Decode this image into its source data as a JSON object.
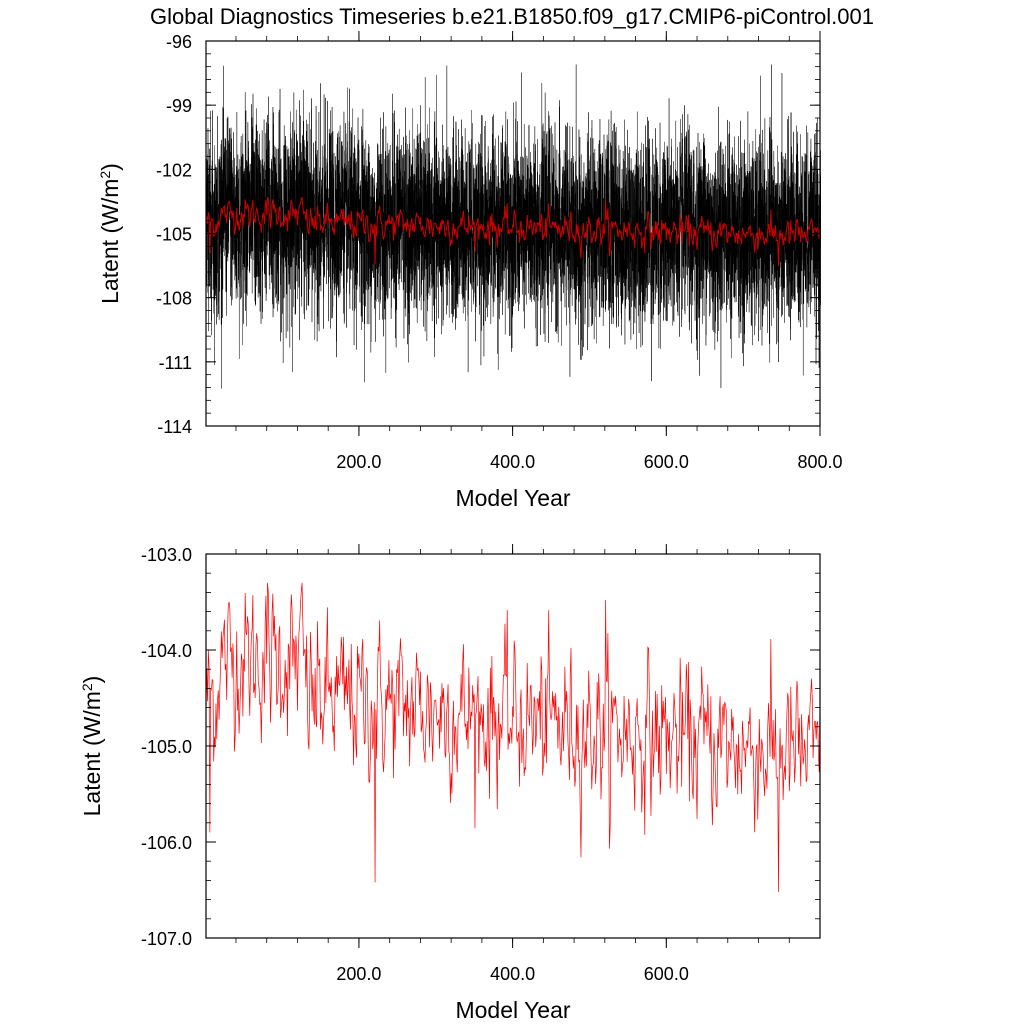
{
  "title": "Global Diagnostics Timeseries b.e21.B1850.f09_g17.CMIP6-piControl.001",
  "chart_data": [
    {
      "type": "line",
      "xlabel": "Model Year",
      "ylabel_main": "Latent (W/m",
      "ylabel_sup": "2",
      "ylabel_tail": ")",
      "xlim": [
        1,
        800
      ],
      "ylim": [
        -114,
        -96
      ],
      "xticks": [
        200,
        400,
        600,
        800
      ],
      "xtick_labels": [
        "200.0",
        "400.0",
        "600.0",
        "800.0"
      ],
      "yticks": [
        -96,
        -99,
        -102,
        -105,
        -108,
        -111,
        -114
      ],
      "ytick_labels": [
        "-96",
        "-99",
        "-102",
        "-105",
        "-108",
        "-111",
        "-114"
      ],
      "series": [
        {
          "kind": "monthly",
          "color": "#000000",
          "mean": -104.8,
          "spread": 2.1,
          "min": -113.6,
          "max": -97.1
        },
        {
          "kind": "annual",
          "color": "#cc0000",
          "mean": -104.8,
          "min": -106.3,
          "max": -103.4
        }
      ]
    },
    {
      "type": "line",
      "xlabel": "Model Year",
      "ylabel_main": "Latent (W/m",
      "ylabel_sup": "2",
      "ylabel_tail": ")",
      "xlim": [
        1,
        800
      ],
      "ylim": [
        -107.0,
        -103.0
      ],
      "xticks": [
        200,
        400,
        600
      ],
      "xtick_labels": [
        "200.0",
        "400.0",
        "600.0"
      ],
      "yticks": [
        -103.0,
        -104.0,
        -105.0,
        -106.0,
        -107.0
      ],
      "ytick_labels": [
        "-103.0",
        "-104.0",
        "-105.0",
        "-106.0",
        "-107.0"
      ],
      "series": [
        {
          "kind": "annual",
          "color": "#ff0000",
          "start_mean": -104.4,
          "end_mean": -105.1,
          "min": -106.45,
          "max": -103.3
        }
      ]
    }
  ]
}
